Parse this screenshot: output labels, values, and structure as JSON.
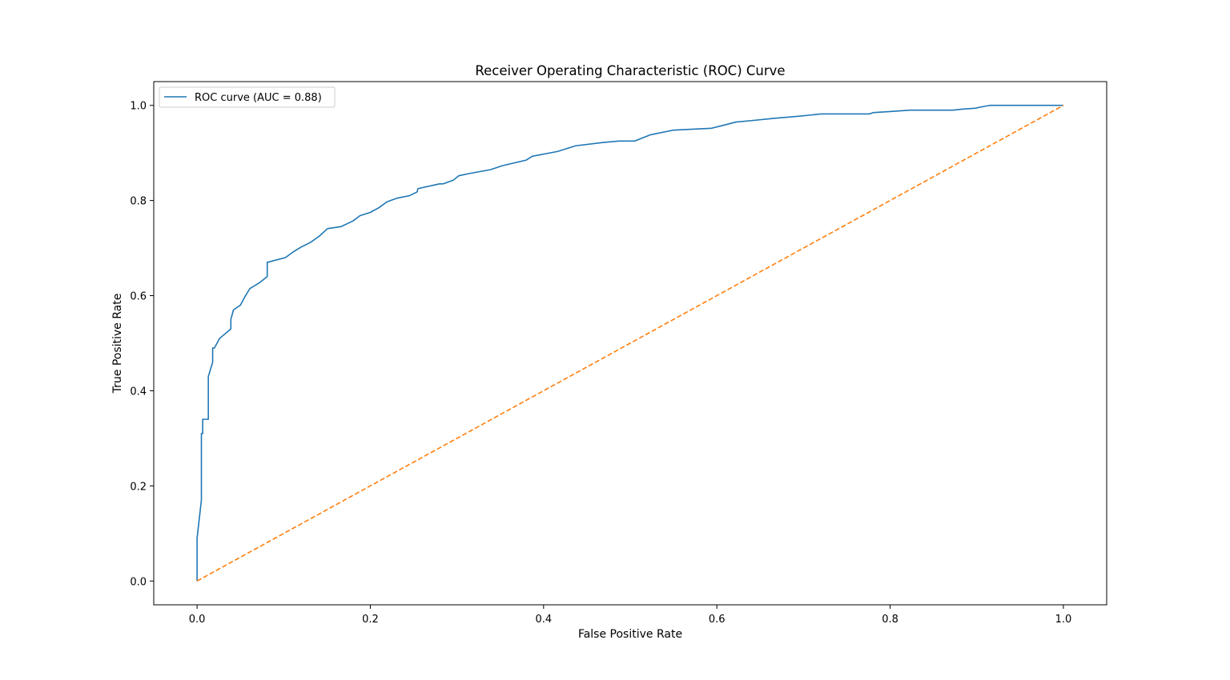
{
  "chart_data": {
    "type": "line",
    "title": "Receiver Operating Characteristic (ROC) Curve",
    "xlabel": "False Positive Rate",
    "ylabel": "True Positive Rate",
    "xlim": [
      -0.05,
      1.05
    ],
    "ylim": [
      -0.05,
      1.05
    ],
    "x_ticks": [
      0.0,
      0.2,
      0.4,
      0.6,
      0.8,
      1.0
    ],
    "x_tick_labels": [
      "0.0",
      "0.2",
      "0.4",
      "0.6",
      "0.8",
      "1.0"
    ],
    "y_ticks": [
      0.0,
      0.2,
      0.4,
      0.6,
      0.8,
      1.0
    ],
    "y_tick_labels": [
      "0.0",
      "0.2",
      "0.4",
      "0.6",
      "0.8",
      "1.0"
    ],
    "grid": false,
    "legend_placement": "upper-left",
    "series": [
      {
        "name": "ROC curve (AUC = 0.88)",
        "color": "#1f77b4",
        "style": "solid",
        "x": [
          0.0,
          0.0,
          0.005,
          0.005,
          0.0065,
          0.0065,
          0.013,
          0.013,
          0.018,
          0.018,
          0.02,
          0.026,
          0.039,
          0.039,
          0.042,
          0.05,
          0.055,
          0.061,
          0.072,
          0.081,
          0.081,
          0.102,
          0.111,
          0.12,
          0.131,
          0.141,
          0.15,
          0.151,
          0.166,
          0.18,
          0.188,
          0.2,
          0.21,
          0.219,
          0.231,
          0.245,
          0.254,
          0.255,
          0.28,
          0.284,
          0.296,
          0.302,
          0.315,
          0.339,
          0.352,
          0.38,
          0.387,
          0.416,
          0.437,
          0.469,
          0.487,
          0.505,
          0.523,
          0.55,
          0.594,
          0.605,
          0.622,
          0.64,
          0.667,
          0.693,
          0.71,
          0.72,
          0.776,
          0.781,
          0.8,
          0.823,
          0.873,
          0.883,
          0.898,
          0.906,
          0.915,
          1.0
        ],
        "y": [
          0.0,
          0.09,
          0.17,
          0.31,
          0.31,
          0.34,
          0.34,
          0.43,
          0.46,
          0.49,
          0.49,
          0.51,
          0.53,
          0.55,
          0.57,
          0.58,
          0.597,
          0.615,
          0.627,
          0.64,
          0.67,
          0.68,
          0.692,
          0.702,
          0.712,
          0.725,
          0.74,
          0.741,
          0.745,
          0.757,
          0.768,
          0.775,
          0.785,
          0.797,
          0.805,
          0.81,
          0.818,
          0.825,
          0.835,
          0.835,
          0.843,
          0.852,
          0.857,
          0.865,
          0.873,
          0.885,
          0.893,
          0.903,
          0.915,
          0.922,
          0.925,
          0.925,
          0.938,
          0.948,
          0.952,
          0.957,
          0.965,
          0.968,
          0.973,
          0.977,
          0.98,
          0.982,
          0.982,
          0.985,
          0.987,
          0.99,
          0.99,
          0.992,
          0.994,
          0.997,
          1.0,
          1.0
        ]
      },
      {
        "color": "#ff7f0e",
        "style": "dashed",
        "x": [
          0.0,
          1.0
        ],
        "y": [
          0.0,
          1.0
        ]
      }
    ]
  }
}
